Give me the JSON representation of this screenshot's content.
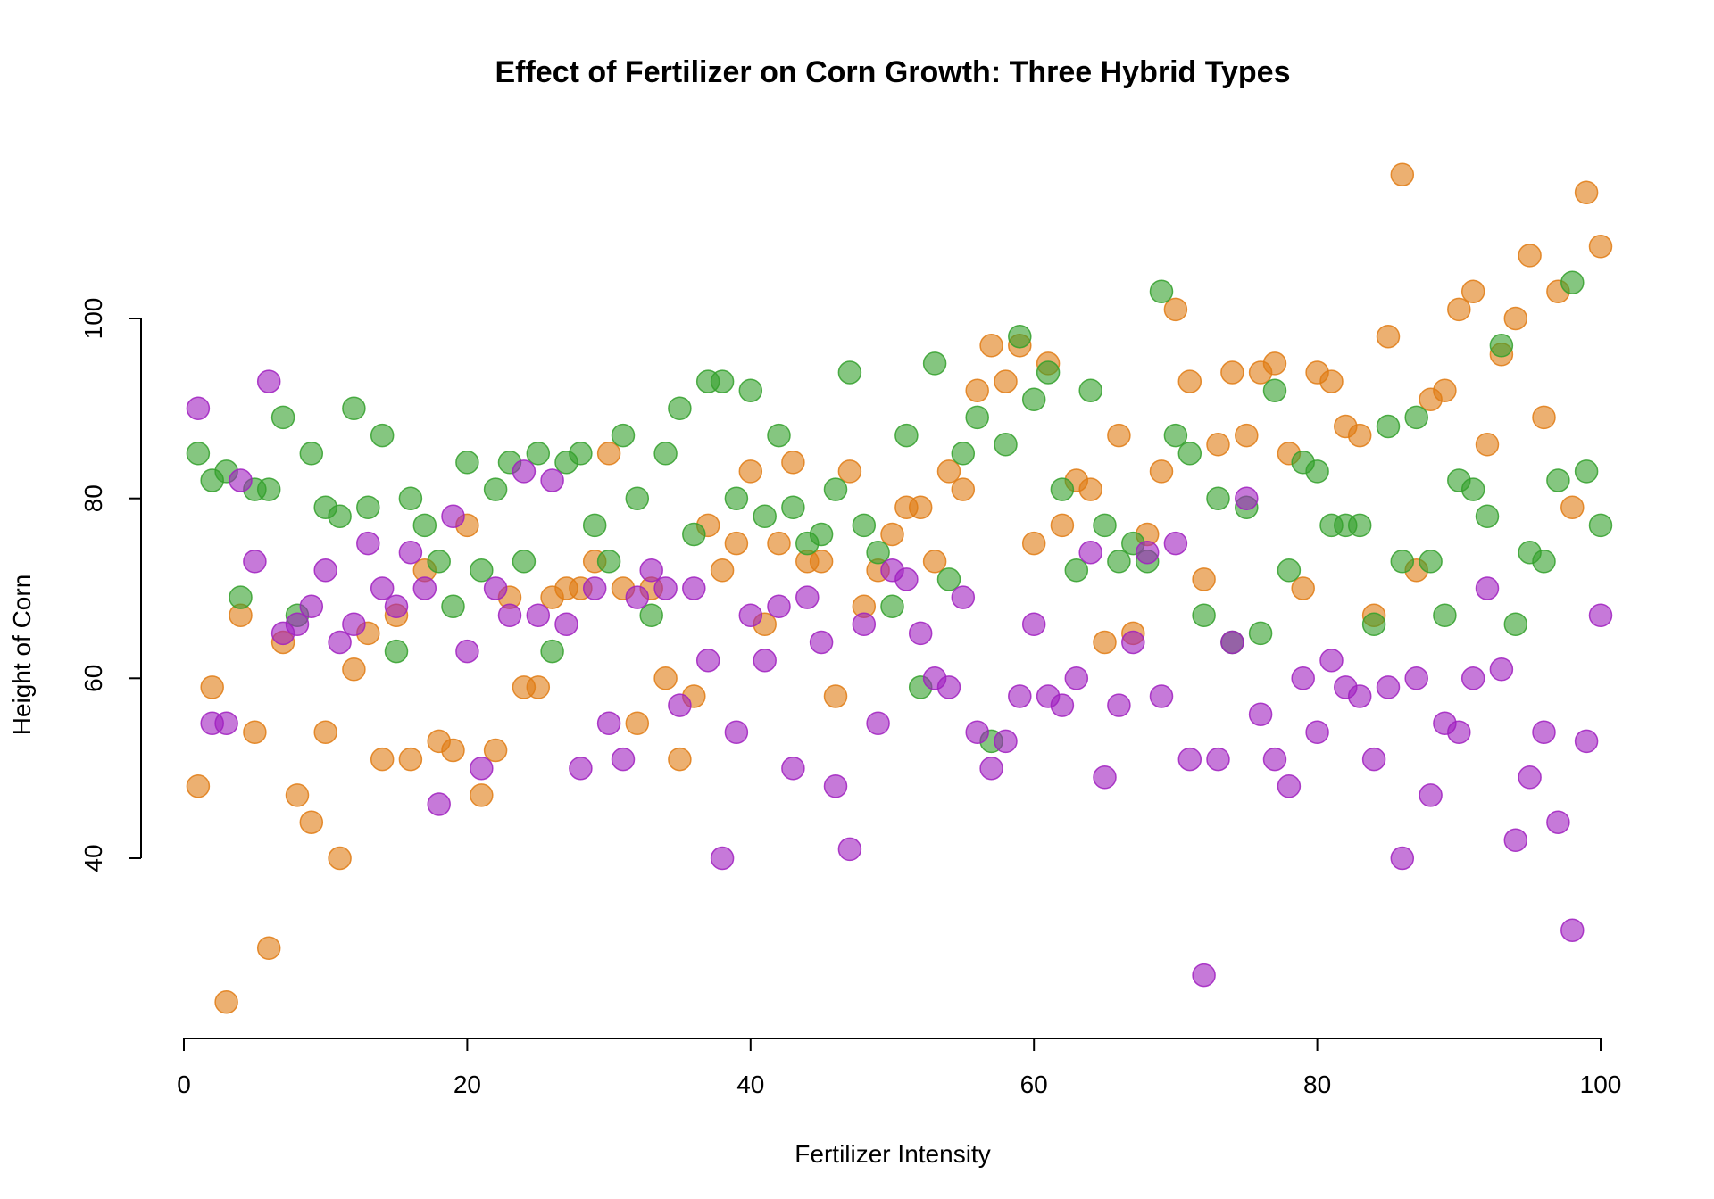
{
  "chart_data": {
    "type": "scatter",
    "title": "Effect of Fertilizer on Corn Growth: Three Hybrid Types",
    "xlabel": "Fertilizer Intensity",
    "ylabel": "Height of Corn",
    "xlim": [
      0,
      100
    ],
    "ylim": [
      20,
      120
    ],
    "xticks": [
      "0",
      "20",
      "40",
      "60",
      "80",
      "100"
    ],
    "yticks": [
      "40",
      "60",
      "80",
      "100"
    ],
    "grid": false,
    "legend": "none",
    "series": [
      {
        "color": "#e07b13",
        "x": [
          1,
          2,
          3,
          4,
          5,
          6,
          7,
          8,
          9,
          10,
          11,
          12,
          13,
          14,
          15,
          16,
          17,
          18,
          19,
          20,
          21,
          22,
          23,
          24,
          25,
          26,
          27,
          28,
          29,
          30,
          31,
          32,
          33,
          34,
          35,
          36,
          37,
          38,
          39,
          40,
          41,
          42,
          43,
          44,
          45,
          46,
          47,
          48,
          49,
          50,
          51,
          52,
          53,
          54,
          55,
          56,
          57,
          58,
          59,
          60,
          61,
          62,
          63,
          64,
          65,
          66,
          67,
          68,
          69,
          70,
          71,
          72,
          73,
          74,
          75,
          76,
          77,
          78,
          79,
          80,
          81,
          82,
          83,
          84,
          85,
          86,
          87,
          88,
          89,
          90,
          91,
          92,
          93,
          94,
          95,
          96,
          97,
          98,
          99,
          100
        ],
        "y": [
          48,
          59,
          24,
          67,
          54,
          30,
          64,
          47,
          44,
          54,
          40,
          61,
          65,
          51,
          67,
          51,
          72,
          53,
          52,
          77,
          47,
          52,
          69,
          59,
          59,
          69,
          70,
          70,
          73,
          85,
          70,
          55,
          70,
          60,
          51,
          58,
          77,
          72,
          75,
          83,
          66,
          75,
          84,
          73,
          73,
          58,
          83,
          68,
          72,
          76,
          79,
          79,
          73,
          83,
          81,
          92,
          97,
          93,
          97,
          75,
          95,
          77,
          82,
          81,
          64,
          87,
          65,
          76,
          83,
          101,
          93,
          71,
          86,
          94,
          87,
          94,
          95,
          85,
          70,
          94,
          93,
          88,
          87,
          67,
          98,
          116,
          72,
          91,
          92,
          101,
          103,
          86,
          96,
          100,
          107,
          89,
          103,
          79,
          114,
          108
        ]
      },
      {
        "color": "#33a02c",
        "x": [
          1,
          2,
          3,
          4,
          5,
          6,
          7,
          8,
          9,
          10,
          11,
          12,
          13,
          14,
          15,
          16,
          17,
          18,
          19,
          20,
          21,
          22,
          23,
          24,
          25,
          26,
          27,
          28,
          29,
          30,
          31,
          32,
          33,
          34,
          35,
          36,
          37,
          38,
          39,
          40,
          41,
          42,
          43,
          44,
          45,
          46,
          47,
          48,
          49,
          50,
          51,
          52,
          53,
          54,
          55,
          56,
          57,
          58,
          59,
          60,
          61,
          62,
          63,
          64,
          65,
          66,
          67,
          68,
          69,
          70,
          71,
          72,
          73,
          74,
          75,
          76,
          77,
          78,
          79,
          80,
          81,
          82,
          83,
          84,
          85,
          86,
          87,
          88,
          89,
          90,
          91,
          92,
          93,
          94,
          95,
          96,
          97,
          98,
          99,
          100
        ],
        "y": [
          85,
          82,
          83,
          69,
          81,
          81,
          89,
          67,
          85,
          79,
          78,
          90,
          79,
          87,
          63,
          80,
          77,
          73,
          68,
          84,
          72,
          81,
          84,
          73,
          85,
          63,
          84,
          85,
          77,
          73,
          87,
          80,
          67,
          85,
          90,
          76,
          93,
          93,
          80,
          92,
          78,
          87,
          79,
          75,
          76,
          81,
          94,
          77,
          74,
          68,
          87,
          59,
          95,
          71,
          85,
          89,
          53,
          86,
          98,
          91,
          94,
          81,
          72,
          92,
          77,
          73,
          75,
          73,
          103,
          87,
          85,
          67,
          80,
          64,
          79,
          65,
          92,
          72,
          84,
          83,
          77,
          77,
          77,
          66,
          88,
          73,
          89,
          73,
          67,
          82,
          81,
          78,
          97,
          66,
          74,
          73,
          82,
          104,
          83,
          77
        ]
      },
      {
        "color": "#a020c0",
        "x": [
          1,
          2,
          3,
          4,
          5,
          6,
          7,
          8,
          9,
          10,
          11,
          12,
          13,
          14,
          15,
          16,
          17,
          18,
          19,
          20,
          21,
          22,
          23,
          24,
          25,
          26,
          27,
          28,
          29,
          30,
          31,
          32,
          33,
          34,
          35,
          36,
          37,
          38,
          39,
          40,
          41,
          42,
          43,
          44,
          45,
          46,
          47,
          48,
          49,
          50,
          51,
          52,
          53,
          54,
          55,
          56,
          57,
          58,
          59,
          60,
          61,
          62,
          63,
          64,
          65,
          66,
          67,
          68,
          69,
          70,
          71,
          72,
          73,
          74,
          75,
          76,
          77,
          78,
          79,
          80,
          81,
          82,
          83,
          84,
          85,
          86,
          87,
          88,
          89,
          90,
          91,
          92,
          93,
          94,
          95,
          96,
          97,
          98,
          99,
          100
        ],
        "y": [
          90,
          55,
          55,
          82,
          73,
          93,
          65,
          66,
          68,
          72,
          64,
          66,
          75,
          70,
          68,
          74,
          70,
          46,
          78,
          63,
          50,
          70,
          67,
          83,
          67,
          82,
          66,
          50,
          70,
          55,
          51,
          69,
          72,
          70,
          57,
          70,
          62,
          40,
          54,
          67,
          62,
          68,
          50,
          69,
          64,
          48,
          41,
          66,
          55,
          72,
          71,
          65,
          60,
          59,
          69,
          54,
          50,
          53,
          58,
          66,
          58,
          57,
          60,
          74,
          49,
          57,
          64,
          74,
          58,
          75,
          51,
          27,
          51,
          64,
          80,
          56,
          51,
          48,
          60,
          54,
          62,
          59,
          58,
          51,
          59,
          40,
          60,
          47,
          55,
          54,
          60,
          70,
          61,
          42,
          49,
          54,
          44,
          32,
          53,
          67
        ]
      }
    ]
  }
}
